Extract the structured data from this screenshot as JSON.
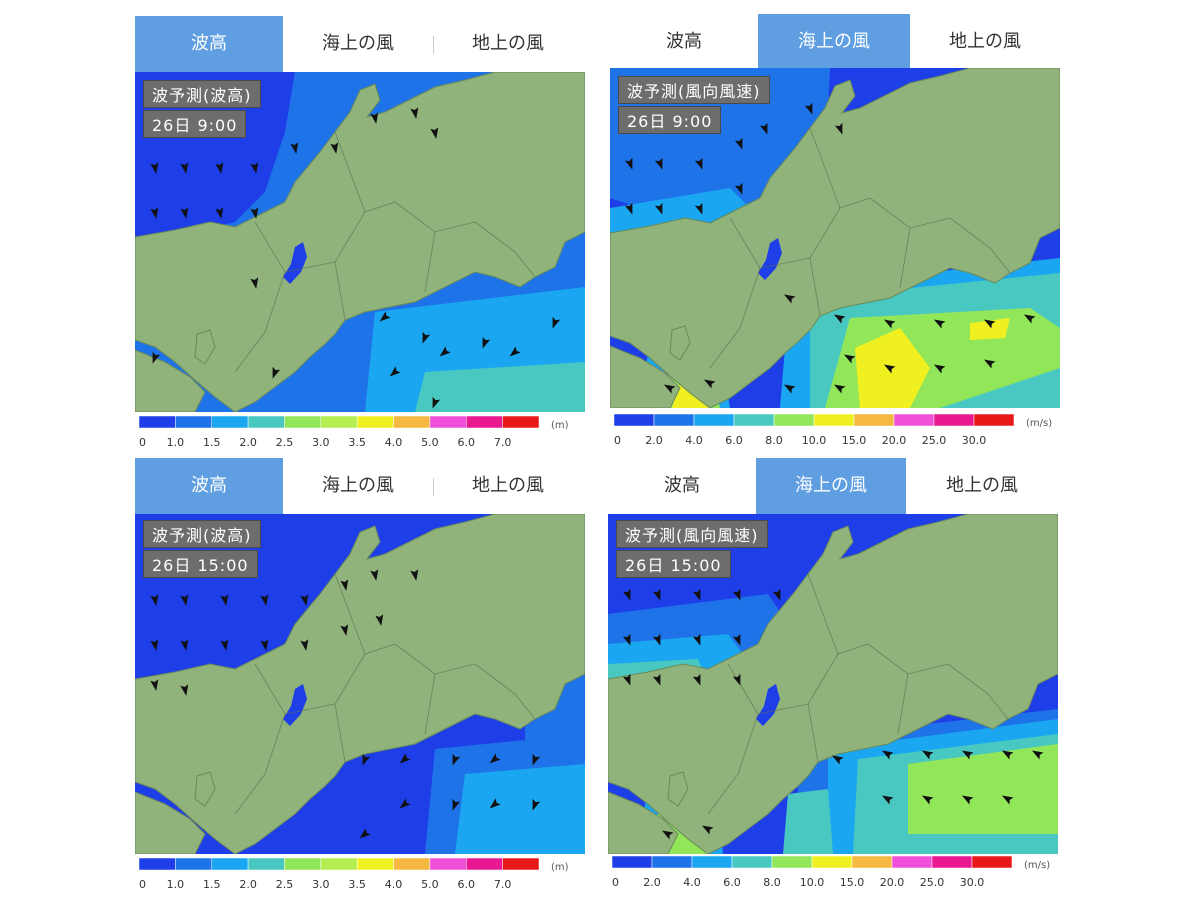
{
  "tabs": [
    "波高",
    "海上の風",
    "地上の風"
  ],
  "panels": [
    {
      "id": "p1",
      "active_tab": 0,
      "title": "波予測(波高)",
      "time": "26日 9:00",
      "mode": "wave"
    },
    {
      "id": "p2",
      "active_tab": 1,
      "title": "波予測(風向風速)",
      "time": "26日 9:00",
      "mode": "wind"
    },
    {
      "id": "p3",
      "active_tab": 0,
      "title": "波予測(波高)",
      "time": "26日 15:00",
      "mode": "wave"
    },
    {
      "id": "p4",
      "active_tab": 1,
      "title": "波予測(風向風速)",
      "time": "26日 15:00",
      "mode": "wind"
    }
  ],
  "legends": {
    "wave": {
      "unit": "(m)",
      "ticks": [
        "0",
        "1.0",
        "1.5",
        "2.0",
        "2.5",
        "3.0",
        "3.5",
        "4.0",
        "5.0",
        "6.0",
        "7.0"
      ],
      "colors": [
        "#1e3ee8",
        "#1f73e8",
        "#1aa6f0",
        "#48c8c0",
        "#92e65a",
        "#b4ee50",
        "#f0f020",
        "#f5b840",
        "#f050d8",
        "#e81890",
        "#e81818"
      ]
    },
    "wind": {
      "unit": "(m/s)",
      "ticks": [
        "0",
        "2.0",
        "4.0",
        "6.0",
        "8.0",
        "10.0",
        "15.0",
        "20.0",
        "25.0",
        "30.0"
      ],
      "colors": [
        "#1e3ee8",
        "#1f73e8",
        "#1aa6f0",
        "#48c8c0",
        "#92e65a",
        "#f0f020",
        "#f5b840",
        "#f050d8",
        "#e81890",
        "#e81818"
      ]
    }
  },
  "colors": {
    "tab_active": "#5e9ee1",
    "land": "#8fb37a",
    "sea_low": "#1e3ee8",
    "sea_mid": "#1f73e8",
    "sea_high": "#1aa6f0"
  }
}
